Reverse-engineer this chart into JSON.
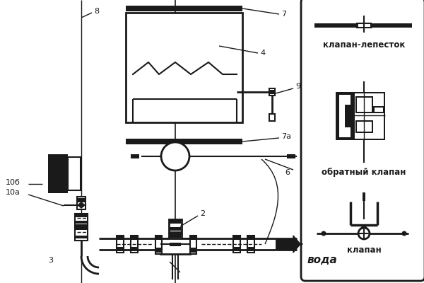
{
  "bg_color": "#ffffff",
  "line_color": "#1a1a1a",
  "legend_labels": [
    "клапан-лепесток",
    "обратный клапан",
    "клапан"
  ],
  "voda_label": "вода"
}
